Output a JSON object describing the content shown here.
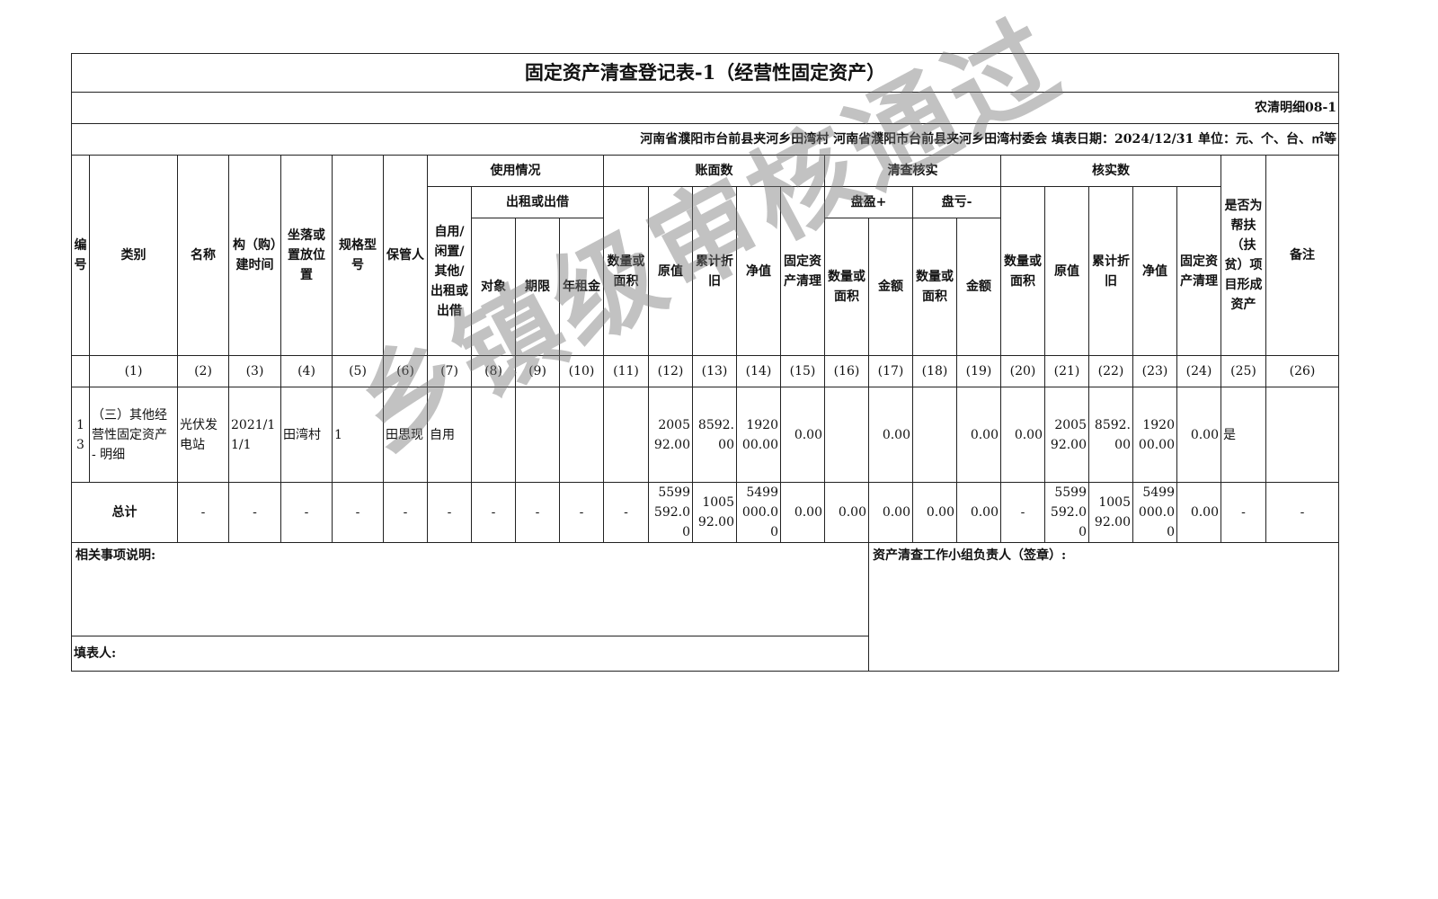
{
  "title": "固定资产清查登记表-1（经营性固定资产）",
  "form_code": "农清明细08-1",
  "meta": "河南省濮阳市台前县夹河乡田湾村  河南省濮阳市台前县夹河乡田湾村委会  填表日期：2024/12/31  单位：元、个、台、㎡等",
  "headers": {
    "no": "编号",
    "category": "类别",
    "name": "名称",
    "build_time": "构（购）建时间",
    "location": "坐落或置放位置",
    "spec": "规格型号",
    "keeper": "保管人",
    "usage": "使用情况",
    "self_use": "自用/闲置/其他/出租或出借",
    "lease": "出租或出借",
    "target": "对象",
    "term": "期限",
    "rent": "年租金",
    "book": "账面数",
    "qty": "数量或面积",
    "orig": "原值",
    "depr": "累计折旧",
    "net": "净值",
    "clear": "固定资产清理",
    "check": "清查核实",
    "surplus": "盘盈+",
    "loss": "盘亏-",
    "amount": "金额",
    "verified": "核实数",
    "poverty": "是否为帮扶（扶贫）项目形成资产",
    "remark": "备注"
  },
  "col_numbers": [
    "(1)",
    "(2)",
    "(3)",
    "(4)",
    "(5)",
    "(6)",
    "(7)",
    "(8)",
    "(9)",
    "(10)",
    "(11)",
    "(12)",
    "(13)",
    "(14)",
    "(15)",
    "(16)",
    "(17)",
    "(18)",
    "(19)",
    "(20)",
    "(21)",
    "(22)",
    "(23)",
    "(24)",
    "(25)",
    "(26)"
  ],
  "rows": [
    {
      "no": "13",
      "cells": [
        "（三）其他经营性固定资产 - 明细",
        "光伏发电站",
        "2021/11/1",
        "田湾村",
        "1",
        "田思现",
        "自用",
        "",
        "",
        "",
        "",
        "200592.00",
        "8592.00",
        "192000.00",
        "0.00",
        "",
        "0.00",
        "",
        "0.00",
        "0.00",
        "200592.00",
        "8592.00",
        "192000.00",
        "0.00",
        "是",
        ""
      ]
    }
  ],
  "total": {
    "label": "总计",
    "cells": [
      "-",
      "-",
      "-",
      "-",
      "-",
      "-",
      "-",
      "-",
      "-",
      "-",
      "5599592.00",
      "100592.00",
      "5499000.00",
      "0.00",
      "0.00",
      "0.00",
      "0.00",
      "0.00",
      "-",
      "5599592.00",
      "100592.00",
      "5499000.00",
      "0.00",
      "-",
      "-"
    ]
  },
  "footer": {
    "notes_label": "相关事项说明:",
    "preparer_label": "填表人:",
    "leader_label": "资产清查工作小组负责人（签章）:"
  },
  "watermark": "乡镇级审核通过"
}
